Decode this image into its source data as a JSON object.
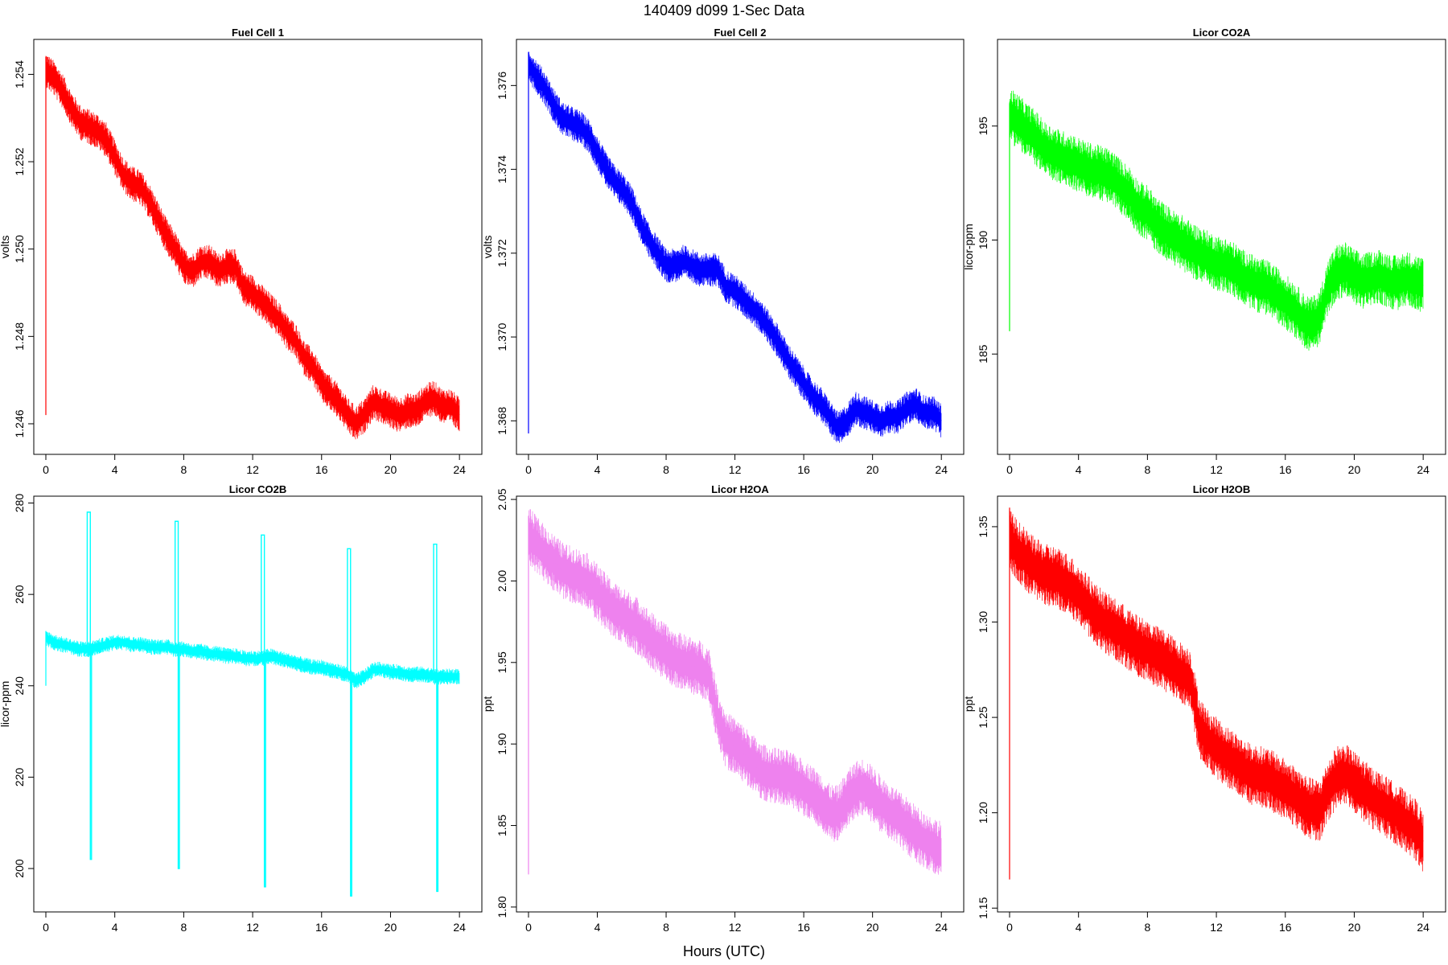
{
  "figure": {
    "title": "140409   d099   1-Sec Data",
    "xlabel": "Hours (UTC)"
  },
  "chart_data": [
    {
      "type": "line",
      "title": "Fuel Cell 1",
      "xlabel": "",
      "ylabel": "volts",
      "color": "#ff0000",
      "xlim": [
        -0.7,
        25.3
      ],
      "ylim": [
        1.2453,
        1.2548
      ],
      "xticks": [
        0,
        4,
        8,
        12,
        16,
        20,
        24
      ],
      "yticks": [
        1.246,
        1.248,
        1.25,
        1.252,
        1.254
      ],
      "ytick_labels": [
        "1.246",
        "1.248",
        "1.250",
        "1.252",
        "1.254"
      ],
      "startup_spike": [
        1.2462,
        1.2544
      ],
      "series": [
        {
          "x": [
            0,
            0.5,
            1,
            1.5,
            2,
            2.5,
            3,
            3.5,
            4,
            4.5,
            5,
            5.5,
            6,
            6.5,
            7,
            7.5,
            8,
            8.5,
            9,
            9.5,
            10,
            10.5,
            11,
            11.5,
            12,
            12.5,
            13,
            13.5,
            14,
            14.5,
            15,
            15.5,
            16,
            16.5,
            17,
            17.5,
            18,
            18.5,
            19,
            19.5,
            20,
            20.5,
            21,
            21.5,
            22,
            22.5,
            23,
            23.5,
            24
          ],
          "y": [
            1.2541,
            1.2539,
            1.2536,
            1.2532,
            1.2529,
            1.2528,
            1.2527,
            1.2525,
            1.2521,
            1.2517,
            1.2515,
            1.2514,
            1.2511,
            1.2507,
            1.2503,
            1.25,
            1.2496,
            1.2495,
            1.2497,
            1.2497,
            1.2495,
            1.2496,
            1.2496,
            1.2491,
            1.249,
            1.2488,
            1.2486,
            1.2484,
            1.2481,
            1.2479,
            1.2475,
            1.2473,
            1.2469,
            1.2467,
            1.2465,
            1.2462,
            1.246,
            1.2462,
            1.2465,
            1.2464,
            1.2463,
            1.2462,
            1.2463,
            1.2463,
            1.2465,
            1.2466,
            1.2464,
            1.2464,
            1.2462
          ],
          "noise": 0.0003
        }
      ]
    },
    {
      "type": "line",
      "title": "Fuel Cell 2",
      "xlabel": "",
      "ylabel": "volts",
      "color": "#0000ff",
      "xlim": [
        -0.7,
        25.3
      ],
      "ylim": [
        1.3672,
        1.3771
      ],
      "xticks": [
        0,
        4,
        8,
        12,
        16,
        20,
        24
      ],
      "yticks": [
        1.368,
        1.37,
        1.372,
        1.374,
        1.376
      ],
      "ytick_labels": [
        "1.368",
        "1.370",
        "1.372",
        "1.374",
        "1.376"
      ],
      "startup_spike": [
        1.3677,
        1.3768
      ],
      "series": [
        {
          "x": [
            0,
            0.5,
            1,
            1.5,
            2,
            2.5,
            3,
            3.5,
            4,
            4.5,
            5,
            5.5,
            6,
            6.5,
            7,
            7.5,
            8,
            8.5,
            9,
            9.5,
            10,
            10.5,
            11,
            11.5,
            12,
            12.5,
            13,
            13.5,
            14,
            14.5,
            15,
            15.5,
            16,
            16.5,
            17,
            17.5,
            18,
            18.5,
            19,
            19.5,
            20,
            20.5,
            21,
            21.5,
            22,
            22.5,
            23,
            23.5,
            24
          ],
          "y": [
            1.3765,
            1.3762,
            1.3759,
            1.3755,
            1.3752,
            1.3751,
            1.375,
            1.3748,
            1.3744,
            1.374,
            1.3737,
            1.3735,
            1.3732,
            1.3727,
            1.3723,
            1.372,
            1.3717,
            1.3717,
            1.3718,
            1.3717,
            1.3716,
            1.3716,
            1.3716,
            1.3712,
            1.3711,
            1.3709,
            1.3707,
            1.3705,
            1.3702,
            1.3699,
            1.3695,
            1.3692,
            1.3689,
            1.3686,
            1.3684,
            1.3681,
            1.3678,
            1.368,
            1.3683,
            1.3682,
            1.3681,
            1.368,
            1.3681,
            1.3681,
            1.3683,
            1.3684,
            1.3682,
            1.3682,
            1.368
          ],
          "noise": 0.0003
        }
      ]
    },
    {
      "type": "line",
      "title": "Licor CO2A",
      "xlabel": "",
      "ylabel": "licor-ppm",
      "color": "#00ff00",
      "xlim": [
        -0.7,
        25.3
      ],
      "ylim": [
        180.6,
        198.8
      ],
      "xticks": [
        0,
        4,
        8,
        12,
        16,
        20,
        24
      ],
      "yticks": [
        185,
        190,
        195
      ],
      "ytick_labels": [
        "185",
        "190",
        "195"
      ],
      "startup_spike": [
        186,
        196
      ],
      "series": [
        {
          "x": [
            0,
            0.5,
            1,
            1.5,
            2,
            2.5,
            3,
            3.5,
            4,
            4.5,
            5,
            5.5,
            6,
            6.5,
            7,
            7.5,
            8,
            8.5,
            9,
            9.5,
            10,
            10.5,
            11,
            11.5,
            12,
            12.5,
            13,
            13.5,
            14,
            14.5,
            15,
            15.5,
            16,
            16.5,
            17,
            17.5,
            18,
            18.5,
            19,
            19.5,
            20,
            20.5,
            21,
            21.5,
            22,
            22.5,
            23,
            23.5,
            24
          ],
          "y": [
            195.5,
            195.2,
            194.8,
            194.5,
            194.0,
            193.8,
            193.6,
            193.5,
            193.3,
            193.1,
            193.0,
            192.9,
            192.7,
            192.3,
            192.0,
            191.4,
            191.2,
            190.7,
            190.4,
            190.1,
            189.9,
            189.6,
            189.4,
            189.2,
            189.0,
            188.9,
            188.7,
            188.4,
            188.2,
            188.0,
            187.9,
            187.6,
            187.3,
            187.0,
            186.5,
            186.3,
            186.6,
            188.0,
            188.6,
            188.7,
            188.4,
            188.2,
            188.3,
            188.4,
            188.2,
            188.1,
            188.3,
            188.2,
            188.0
          ],
          "noise": 0.9
        }
      ]
    },
    {
      "type": "line",
      "title": "Licor CO2B",
      "xlabel": "",
      "ylabel": "licor-ppm",
      "color": "#00ffff",
      "xlim": [
        -0.7,
        25.3
      ],
      "ylim": [
        190.5,
        281.5
      ],
      "xticks": [
        0,
        4,
        8,
        12,
        16,
        20,
        24
      ],
      "yticks": [
        200,
        220,
        240,
        260,
        280
      ],
      "ytick_labels": [
        "200",
        "220",
        "240",
        "260",
        "280"
      ],
      "startup_spike": [
        240,
        252
      ],
      "spikes": [
        {
          "x": 2.4,
          "high": 278,
          "low": 202
        },
        {
          "x": 7.5,
          "high": 276,
          "low": 200
        },
        {
          "x": 12.5,
          "high": 273,
          "low": 196
        },
        {
          "x": 17.5,
          "high": 270,
          "low": 194
        },
        {
          "x": 22.5,
          "high": 271,
          "low": 195
        }
      ],
      "series": [
        {
          "x": [
            0,
            0.5,
            1,
            1.5,
            2,
            2.5,
            3,
            3.5,
            4,
            4.5,
            5,
            5.5,
            6,
            6.5,
            7,
            7.5,
            8,
            8.5,
            9,
            9.5,
            10,
            10.5,
            11,
            11.5,
            12,
            12.5,
            13,
            13.5,
            14,
            14.5,
            15,
            15.5,
            16,
            16.5,
            17,
            17.5,
            18,
            18.5,
            19,
            19.5,
            20,
            20.5,
            21,
            21.5,
            22,
            22.5,
            23,
            23.5,
            24
          ],
          "y": [
            250.5,
            249.5,
            249.0,
            248.5,
            248.0,
            248.0,
            248.5,
            249.0,
            249.5,
            249.5,
            249.0,
            249.0,
            248.5,
            248.5,
            248.5,
            248.0,
            248.0,
            247.5,
            247.5,
            247.0,
            247.0,
            246.5,
            246.5,
            246.0,
            246.0,
            246.0,
            246.5,
            246.0,
            245.5,
            245.0,
            244.5,
            244.0,
            244.0,
            243.5,
            243.0,
            242.5,
            241.0,
            242.0,
            243.5,
            243.5,
            243.0,
            243.0,
            242.5,
            242.5,
            242.5,
            242.0,
            242.0,
            242.0,
            242.0
          ],
          "noise": 1.3
        }
      ]
    },
    {
      "type": "line",
      "title": "Licor H2OA",
      "xlabel": "",
      "ylabel": "ppt",
      "color": "#ee82ee",
      "xlim": [
        -0.7,
        25.3
      ],
      "ylim": [
        1.797,
        2.052
      ],
      "xticks": [
        0,
        4,
        8,
        12,
        16,
        20,
        24
      ],
      "yticks": [
        1.8,
        1.85,
        1.9,
        1.95,
        2.0,
        2.05
      ],
      "ytick_labels": [
        "1.80",
        "1.85",
        "1.90",
        "1.95",
        "2.00",
        "2.05"
      ],
      "startup_spike": [
        1.82,
        2.04
      ],
      "series": [
        {
          "x": [
            0,
            0.5,
            1,
            1.5,
            2,
            2.5,
            3,
            3.5,
            4,
            4.5,
            5,
            5.5,
            6,
            6.5,
            7,
            7.5,
            8,
            8.5,
            9,
            9.5,
            10,
            10.5,
            11,
            11.5,
            12,
            12.5,
            13,
            13.5,
            14,
            14.5,
            15,
            15.5,
            16,
            16.5,
            17,
            17.5,
            18,
            18.5,
            19,
            19.5,
            20,
            20.5,
            21,
            21.5,
            22,
            22.5,
            23,
            23.5,
            24
          ],
          "y": [
            2.028,
            2.022,
            2.016,
            2.011,
            2.006,
            2.004,
            2.002,
            1.999,
            1.993,
            1.987,
            1.982,
            1.978,
            1.975,
            1.971,
            1.965,
            1.96,
            1.956,
            1.952,
            1.95,
            1.948,
            1.946,
            1.942,
            1.916,
            1.902,
            1.899,
            1.894,
            1.889,
            1.883,
            1.881,
            1.88,
            1.879,
            1.876,
            1.873,
            1.869,
            1.865,
            1.858,
            1.857,
            1.866,
            1.872,
            1.874,
            1.869,
            1.863,
            1.858,
            1.854,
            1.85,
            1.845,
            1.841,
            1.838,
            1.835
          ],
          "noise": 0.013
        }
      ]
    },
    {
      "type": "line",
      "title": "Licor H2OB",
      "xlabel": "",
      "ylabel": "ppt",
      "color": "#ff0000",
      "xlim": [
        -0.7,
        25.3
      ],
      "ylim": [
        1.148,
        1.366
      ],
      "xticks": [
        0,
        4,
        8,
        12,
        16,
        20,
        24
      ],
      "yticks": [
        1.15,
        1.2,
        1.25,
        1.3,
        1.35
      ],
      "ytick_labels": [
        "1.15",
        "1.20",
        "1.25",
        "1.30",
        "1.35"
      ],
      "startup_spike": [
        1.165,
        1.36
      ],
      "series": [
        {
          "x": [
            0,
            0.5,
            1,
            1.5,
            2,
            2.5,
            3,
            3.5,
            4,
            4.5,
            5,
            5.5,
            6,
            6.5,
            7,
            7.5,
            8,
            8.5,
            9,
            9.5,
            10,
            10.5,
            11,
            11.5,
            12,
            12.5,
            13,
            13.5,
            14,
            14.5,
            15,
            15.5,
            16,
            16.5,
            17,
            17.5,
            18,
            18.5,
            19,
            19.5,
            20,
            20.5,
            21,
            21.5,
            22,
            22.5,
            23,
            23.5,
            24
          ],
          "y": [
            1.343,
            1.337,
            1.332,
            1.328,
            1.325,
            1.324,
            1.322,
            1.319,
            1.314,
            1.309,
            1.304,
            1.3,
            1.297,
            1.294,
            1.29,
            1.287,
            1.285,
            1.282,
            1.28,
            1.276,
            1.273,
            1.27,
            1.245,
            1.238,
            1.234,
            1.23,
            1.227,
            1.223,
            1.22,
            1.219,
            1.218,
            1.215,
            1.212,
            1.209,
            1.205,
            1.202,
            1.201,
            1.212,
            1.219,
            1.22,
            1.216,
            1.212,
            1.208,
            1.205,
            1.202,
            1.199,
            1.195,
            1.192,
            1.185
          ],
          "noise": 0.012
        }
      ]
    }
  ]
}
